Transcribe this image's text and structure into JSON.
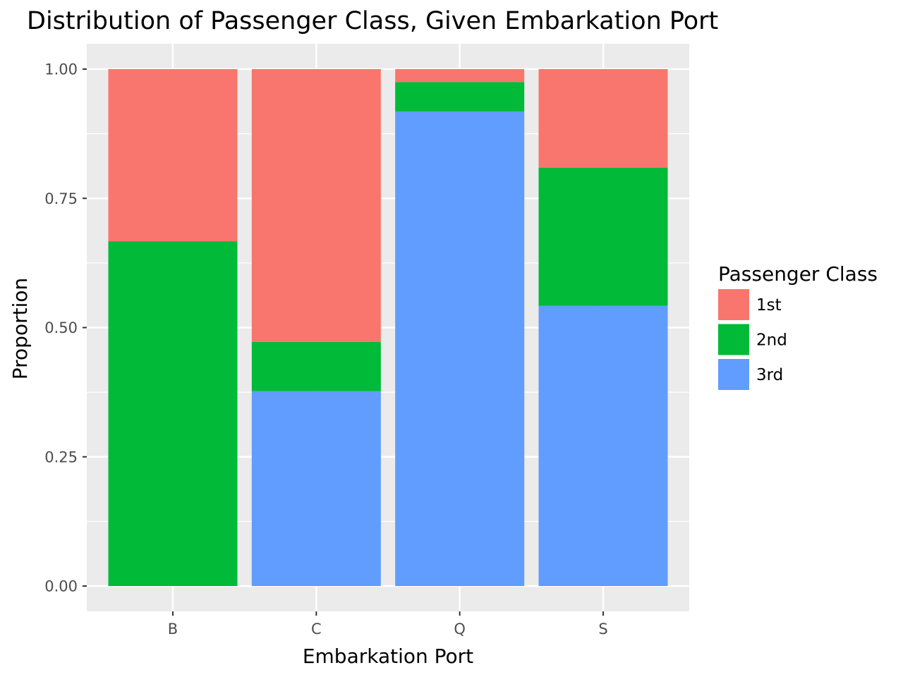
{
  "chart_data": {
    "type": "bar",
    "stacked": true,
    "title": "Distribution of Passenger Class, Given Embarkation Port",
    "xlabel": "Embarkation Port",
    "ylabel": "Proportion",
    "categories": [
      "B",
      "C",
      "Q",
      "S"
    ],
    "ylim": [
      0,
      1
    ],
    "yticks": [
      "0.00",
      "0.25",
      "0.50",
      "0.75",
      "1.00"
    ],
    "grid": true,
    "legend": {
      "title": "Passenger Class",
      "position": "right"
    },
    "series": [
      {
        "name": "3rd",
        "color": "#619CFF",
        "values": [
          0.0,
          0.377,
          0.918,
          0.542
        ]
      },
      {
        "name": "2nd",
        "color": "#00BA38",
        "values": [
          0.667,
          0.095,
          0.057,
          0.267
        ]
      },
      {
        "name": "1st",
        "color": "#F8766D",
        "values": [
          0.333,
          0.528,
          0.025,
          0.191
        ]
      }
    ],
    "legend_order": [
      "1st",
      "2nd",
      "3rd"
    ]
  }
}
